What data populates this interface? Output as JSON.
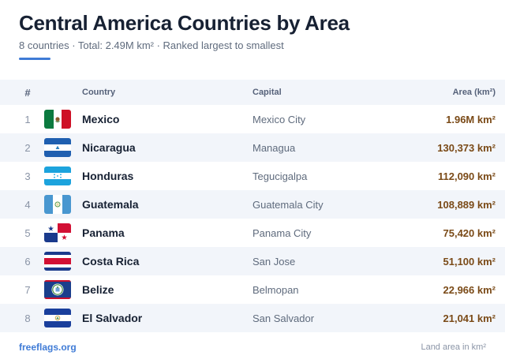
{
  "header": {
    "title": "Central America Countries by Area",
    "subtitle": "8 countries · Total: 2.49M km² · Ranked largest to smallest",
    "accent_color": "#3f7bd6"
  },
  "table": {
    "columns": {
      "rank": "#",
      "country": "Country",
      "capital": "Capital",
      "area": "Area (km²)"
    },
    "rows": [
      {
        "rank": "1",
        "country": "Mexico",
        "capital": "Mexico City",
        "area": "1.96M km²",
        "flag_icon": "mexico-flag-icon"
      },
      {
        "rank": "2",
        "country": "Nicaragua",
        "capital": "Managua",
        "area": "130,373 km²",
        "flag_icon": "nicaragua-flag-icon"
      },
      {
        "rank": "3",
        "country": "Honduras",
        "capital": "Tegucigalpa",
        "area": "112,090 km²",
        "flag_icon": "honduras-flag-icon"
      },
      {
        "rank": "4",
        "country": "Guatemala",
        "capital": "Guatemala City",
        "area": "108,889 km²",
        "flag_icon": "guatemala-flag-icon"
      },
      {
        "rank": "5",
        "country": "Panama",
        "capital": "Panama City",
        "area": "75,420 km²",
        "flag_icon": "panama-flag-icon"
      },
      {
        "rank": "6",
        "country": "Costa Rica",
        "capital": "San Jose",
        "area": "51,100 km²",
        "flag_icon": "costa-rica-flag-icon"
      },
      {
        "rank": "7",
        "country": "Belize",
        "capital": "Belmopan",
        "area": "22,966 km²",
        "flag_icon": "belize-flag-icon"
      },
      {
        "rank": "8",
        "country": "El Salvador",
        "capital": "San Salvador",
        "area": "21,041 km²",
        "flag_icon": "el-salvador-flag-icon"
      }
    ]
  },
  "footer": {
    "brand": "freeflags.org",
    "note": "Land area in km²"
  },
  "colors": {
    "title": "#172133",
    "area_value": "#7a4a17",
    "stripe": "#f2f5fa",
    "brand_link": "#3f7bd6"
  }
}
